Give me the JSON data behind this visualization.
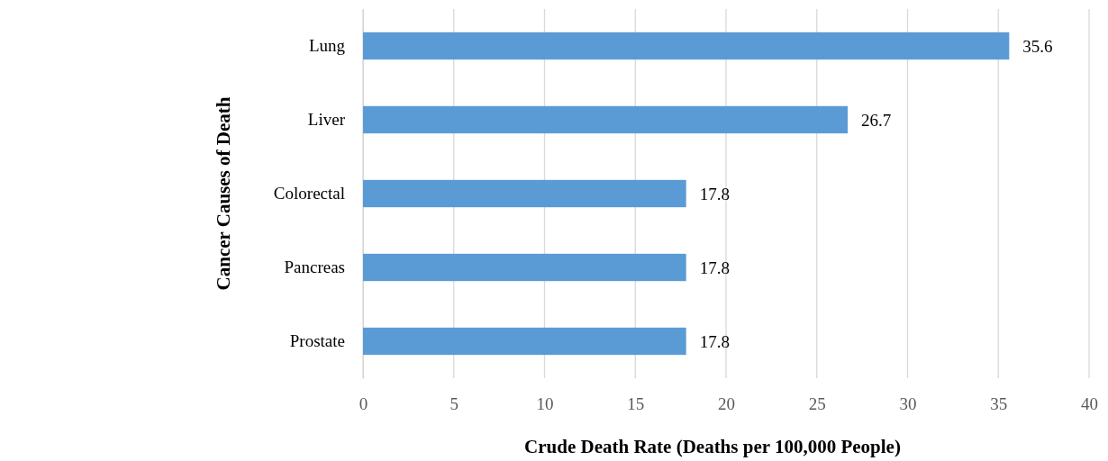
{
  "chart_data": {
    "type": "bar",
    "orientation": "horizontal",
    "categories": [
      "Lung",
      "Liver",
      "Colorectal",
      "Pancreas",
      "Prostate"
    ],
    "values": [
      35.6,
      26.7,
      17.8,
      17.8,
      17.8
    ],
    "color": "#5b9bd5",
    "xlim": [
      0,
      40
    ],
    "xticks": [
      0,
      5,
      10,
      15,
      20,
      25,
      30,
      35,
      40
    ],
    "grid": "x",
    "data_labels": true,
    "xlabel": "Crude Death Rate (Deaths per 100,000 People)",
    "ylabel": "Cancer Causes of Death"
  }
}
